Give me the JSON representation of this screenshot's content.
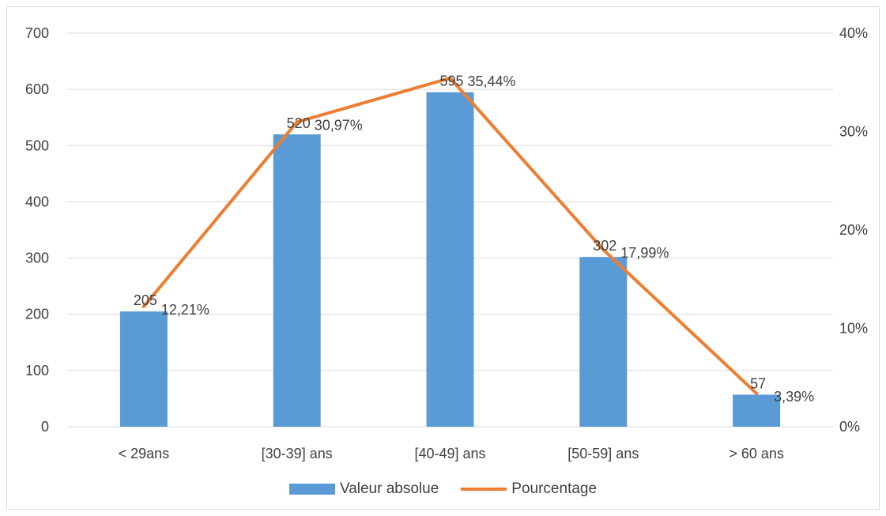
{
  "colors": {
    "bar": "#5b9bd5",
    "line": "#ed7d31",
    "grid": "#d9d9d9",
    "text": "#404040"
  },
  "chart_data": {
    "type": "bar",
    "categories": [
      "< 29ans",
      "[30-39] ans",
      "[40-49] ans",
      "[50-59] ans",
      "> 60 ans"
    ],
    "series": [
      {
        "name": "Valeur absolue",
        "type": "bar",
        "axis": "left",
        "values": [
          205,
          520,
          595,
          302,
          57
        ],
        "labels": [
          "205",
          "520",
          "595",
          "302",
          "57"
        ]
      },
      {
        "name": "Pourcentage",
        "type": "line",
        "axis": "right",
        "values": [
          12.21,
          30.97,
          35.44,
          17.99,
          3.39
        ],
        "labels": [
          "12,21%",
          "30,97%",
          "35,44%",
          "17,99%",
          "3,39%"
        ]
      }
    ],
    "ylim": [
      0,
      700
    ],
    "yticks": [
      0,
      100,
      200,
      300,
      400,
      500,
      600,
      700
    ],
    "ytick_labels": [
      "0",
      "100",
      "200",
      "300",
      "400",
      "500",
      "600",
      "700"
    ],
    "y2lim": [
      0,
      40
    ],
    "y2ticks": [
      0,
      10,
      20,
      30,
      40
    ],
    "y2tick_labels": [
      "0%",
      "10%",
      "20%",
      "30%",
      "40%"
    ],
    "grid": true,
    "legend_position": "bottom"
  }
}
